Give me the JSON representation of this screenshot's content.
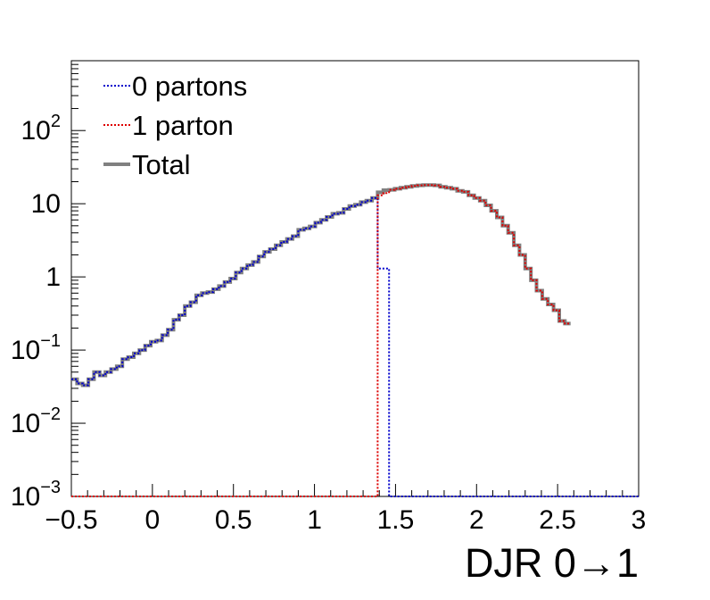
{
  "chart_data": {
    "type": "line",
    "style": "step-histogram",
    "title": "",
    "xlabel": "DJR 0→1",
    "ylabel": "",
    "xlim": [
      -0.5,
      3.0
    ],
    "ylim": [
      0.001,
      900
    ],
    "yscale": "log",
    "grid": false,
    "legend_position": "top-left",
    "x_ticks": [
      {
        "value": -0.5,
        "label": "−0.5"
      },
      {
        "value": 0,
        "label": "0"
      },
      {
        "value": 0.5,
        "label": "0.5"
      },
      {
        "value": 1,
        "label": "1"
      },
      {
        "value": 1.5,
        "label": "1.5"
      },
      {
        "value": 2,
        "label": "2"
      },
      {
        "value": 2.5,
        "label": "2.5"
      },
      {
        "value": 3,
        "label": "3"
      }
    ],
    "y_ticks": [
      {
        "value": 0.001,
        "base": "10",
        "exp": "−3"
      },
      {
        "value": 0.01,
        "base": "10",
        "exp": "−2"
      },
      {
        "value": 0.1,
        "base": "10",
        "exp": "−1"
      },
      {
        "value": 1,
        "base": "1",
        "exp": ""
      },
      {
        "value": 10,
        "base": "10",
        "exp": ""
      },
      {
        "value": 100,
        "base": "10",
        "exp": "2"
      }
    ],
    "bin_width": 0.035,
    "x_start": -0.5,
    "series": [
      {
        "name": "0 partons",
        "color": "#0000cc",
        "line": "dotted",
        "values": [
          0.04,
          0.035,
          0.033,
          0.04,
          0.05,
          0.045,
          0.05,
          0.055,
          0.06,
          0.075,
          0.08,
          0.09,
          0.1,
          0.115,
          0.13,
          0.135,
          0.16,
          0.19,
          0.26,
          0.3,
          0.4,
          0.45,
          0.56,
          0.6,
          0.62,
          0.68,
          0.75,
          0.85,
          0.95,
          1.15,
          1.3,
          1.45,
          1.6,
          1.9,
          2.2,
          2.4,
          2.7,
          3.0,
          3.3,
          3.6,
          4.4,
          4.6,
          4.9,
          5.5,
          6.0,
          6.6,
          7.3,
          7.5,
          8.5,
          9.3,
          9.7,
          10.5,
          11.0,
          12.0,
          1.3,
          1.3,
          0.001,
          0.001,
          0.001,
          0.001,
          0.001,
          0.001,
          0.001,
          0.001,
          0.001,
          0.001,
          0.001,
          0.001,
          0.001,
          0.001,
          0.001,
          0.001,
          0.001,
          0.001,
          0.001,
          0.001,
          0.001,
          0.001,
          0.001,
          0.001,
          0.001,
          0.001,
          0.001,
          0.001,
          0.001,
          0.001,
          0.001,
          0.001,
          0.001,
          0.001,
          0.001,
          0.001,
          0.001,
          0.001,
          0.001,
          0.001,
          0.001,
          0.001,
          0.001,
          0.001
        ]
      },
      {
        "name": "1 parton",
        "color": "#dd0000",
        "line": "dotted",
        "values": [
          0.001,
          0.001,
          0.001,
          0.001,
          0.001,
          0.001,
          0.001,
          0.001,
          0.001,
          0.001,
          0.001,
          0.001,
          0.001,
          0.001,
          0.001,
          0.001,
          0.001,
          0.001,
          0.001,
          0.001,
          0.001,
          0.001,
          0.001,
          0.001,
          0.001,
          0.001,
          0.001,
          0.001,
          0.001,
          0.001,
          0.001,
          0.001,
          0.001,
          0.001,
          0.001,
          0.001,
          0.001,
          0.001,
          0.001,
          0.001,
          0.001,
          0.001,
          0.001,
          0.001,
          0.001,
          0.001,
          0.001,
          0.001,
          0.001,
          0.001,
          0.001,
          0.001,
          0.001,
          0.001,
          13.0,
          14.0,
          15.5,
          16.0,
          16.5,
          17.0,
          17.5,
          17.8,
          18.0,
          18.0,
          17.8,
          17.0,
          16.5,
          16.0,
          15.0,
          14.5,
          13.0,
          12.0,
          11.0,
          9.5,
          8.0,
          6.5,
          5.0,
          4.0,
          2.7,
          2.0,
          1.3,
          0.9,
          0.65,
          0.5,
          0.42,
          0.35,
          0.25,
          0.23
        ]
      },
      {
        "name": "Total",
        "color": "#808080",
        "line": "solid",
        "values": [
          0.04,
          0.035,
          0.033,
          0.04,
          0.05,
          0.045,
          0.05,
          0.055,
          0.06,
          0.075,
          0.08,
          0.09,
          0.1,
          0.115,
          0.13,
          0.135,
          0.16,
          0.19,
          0.26,
          0.3,
          0.4,
          0.45,
          0.56,
          0.6,
          0.62,
          0.68,
          0.75,
          0.85,
          0.95,
          1.15,
          1.3,
          1.45,
          1.6,
          1.9,
          2.2,
          2.4,
          2.7,
          3.0,
          3.3,
          3.6,
          4.4,
          4.6,
          4.9,
          5.5,
          6.0,
          6.6,
          7.3,
          7.5,
          8.5,
          9.3,
          9.7,
          10.5,
          11.0,
          12.0,
          14.3,
          15.3,
          15.5,
          16.0,
          16.5,
          17.0,
          17.5,
          17.8,
          18.0,
          18.0,
          17.8,
          17.0,
          16.5,
          16.0,
          15.0,
          14.5,
          13.0,
          12.0,
          11.0,
          9.5,
          8.0,
          6.5,
          5.0,
          4.0,
          2.7,
          2.0,
          1.3,
          0.9,
          0.65,
          0.5,
          0.42,
          0.35,
          0.25,
          0.23
        ]
      }
    ]
  }
}
